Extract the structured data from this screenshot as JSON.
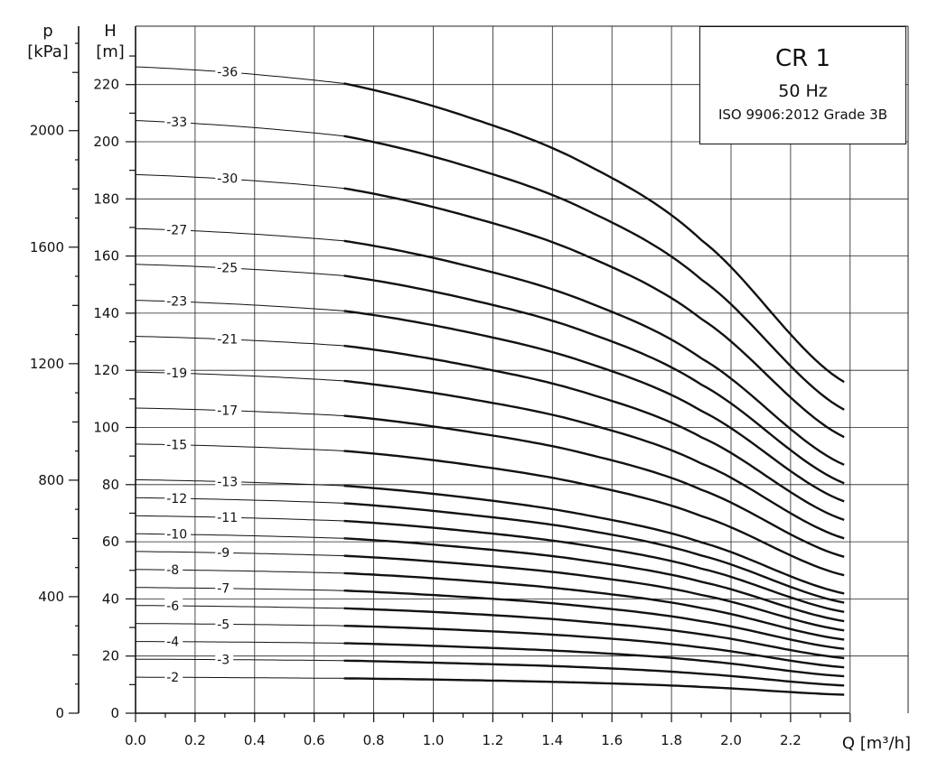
{
  "header": {
    "title": "CR 1",
    "frequency": "50 Hz",
    "standard": "ISO 9906:2012 Grade 3B"
  },
  "axes": {
    "p_symbol": "p",
    "p_unit": "[kPa]",
    "h_symbol": "H",
    "h_unit": "[m]",
    "q_label": "Q [m³/h]"
  },
  "chart_data": {
    "type": "line",
    "title": "CR 1",
    "xlabel": "Q [m³/h]",
    "ylabel": "H [m]",
    "ylabel_secondary": "p [kPa]",
    "xlim": [
      0,
      2.4
    ],
    "ylim": [
      0,
      240
    ],
    "ylim_secondary": [
      0,
      2350
    ],
    "grid": true,
    "x_ticks": [
      "0.0",
      "0.2",
      "0.4",
      "0.6",
      "0.8",
      "1.0",
      "1.2",
      "1.4",
      "1.6",
      "1.8",
      "2.0",
      "2.2"
    ],
    "x_tick_values": [
      0,
      0.2,
      0.4,
      0.6,
      0.8,
      1.0,
      1.2,
      1.4,
      1.6,
      1.8,
      2.0,
      2.2
    ],
    "y_ticks": [
      "0",
      "20",
      "40",
      "60",
      "80",
      "100",
      "120",
      "140",
      "160",
      "180",
      "200",
      "220"
    ],
    "y_tick_values": [
      0,
      20,
      40,
      60,
      80,
      100,
      120,
      140,
      160,
      180,
      200,
      220
    ],
    "p_ticks": [
      "0",
      "400",
      "800",
      "1200",
      "1600",
      "2000"
    ],
    "p_tick_values": [
      0,
      400,
      800,
      1200,
      1600,
      2000
    ],
    "x_points": [
      0,
      0.7,
      1.1,
      1.5,
      1.9,
      2.4
    ],
    "series_style": "thin line for Q 0–0.7, bold line for Q 0.7–2.4",
    "series": [
      {
        "name": "-36",
        "label_q": 0.28,
        "values": [
          226.2,
          220.4,
          209.2,
          192.8,
          165.6,
          114.8
        ]
      },
      {
        "name": "-33",
        "label_q": 0.11,
        "values": [
          207.4,
          202.0,
          191.8,
          176.8,
          151.8,
          105.2
        ]
      },
      {
        "name": "-30",
        "label_q": 0.28,
        "values": [
          188.5,
          183.7,
          174.4,
          160.7,
          138.0,
          95.7
        ]
      },
      {
        "name": "-27",
        "label_q": 0.11,
        "values": [
          169.6,
          165.3,
          156.9,
          144.6,
          124.2,
          86.1
        ]
      },
      {
        "name": "-25",
        "label_q": 0.28,
        "values": [
          157.1,
          153.1,
          145.3,
          133.9,
          115.0,
          79.7
        ]
      },
      {
        "name": "-23",
        "label_q": 0.11,
        "values": [
          144.5,
          140.8,
          133.7,
          123.2,
          105.8,
          73.4
        ]
      },
      {
        "name": "-21",
        "label_q": 0.28,
        "values": [
          131.9,
          128.6,
          122.0,
          112.5,
          96.6,
          67.0
        ]
      },
      {
        "name": "-19",
        "label_q": 0.11,
        "values": [
          119.4,
          116.3,
          110.4,
          101.8,
          87.4,
          60.6
        ]
      },
      {
        "name": "-17",
        "label_q": 0.28,
        "values": [
          106.8,
          104.1,
          98.8,
          91.1,
          78.2,
          54.2
        ]
      },
      {
        "name": "-15",
        "label_q": 0.11,
        "values": [
          94.2,
          91.8,
          87.2,
          80.3,
          69.0,
          47.8
        ]
      },
      {
        "name": "-13",
        "label_q": 0.28,
        "values": [
          81.7,
          79.6,
          75.6,
          69.6,
          59.8,
          41.5
        ]
      },
      {
        "name": "-12",
        "label_q": 0.11,
        "values": [
          75.4,
          73.5,
          69.7,
          64.3,
          55.2,
          38.3
        ]
      },
      {
        "name": "-11",
        "label_q": 0.28,
        "values": [
          69.1,
          67.3,
          63.9,
          58.9,
          50.6,
          35.1
        ]
      },
      {
        "name": "-10",
        "label_q": 0.11,
        "values": [
          62.8,
          61.2,
          58.1,
          53.6,
          46.0,
          31.9
        ]
      },
      {
        "name": "-9",
        "label_q": 0.28,
        "values": [
          56.6,
          55.1,
          52.3,
          48.2,
          41.4,
          28.7
        ]
      },
      {
        "name": "-8",
        "label_q": 0.11,
        "values": [
          50.3,
          49.0,
          46.5,
          42.8,
          36.8,
          25.5
        ]
      },
      {
        "name": "-7",
        "label_q": 0.28,
        "values": [
          44.0,
          42.9,
          40.7,
          37.5,
          32.2,
          22.3
        ]
      },
      {
        "name": "-6",
        "label_q": 0.11,
        "values": [
          37.7,
          36.7,
          34.9,
          32.1,
          27.6,
          19.1
        ]
      },
      {
        "name": "-5",
        "label_q": 0.28,
        "values": [
          31.4,
          30.6,
          29.1,
          26.8,
          23.0,
          15.9
        ]
      },
      {
        "name": "-4",
        "label_q": 0.11,
        "values": [
          25.1,
          24.5,
          23.2,
          21.4,
          18.4,
          12.8
        ]
      },
      {
        "name": "-3",
        "label_q": 0.28,
        "values": [
          18.9,
          18.4,
          17.4,
          16.1,
          13.8,
          9.6
        ]
      },
      {
        "name": "-2",
        "label_q": 0.11,
        "values": [
          12.6,
          12.2,
          11.6,
          10.7,
          9.2,
          6.4
        ]
      }
    ]
  }
}
